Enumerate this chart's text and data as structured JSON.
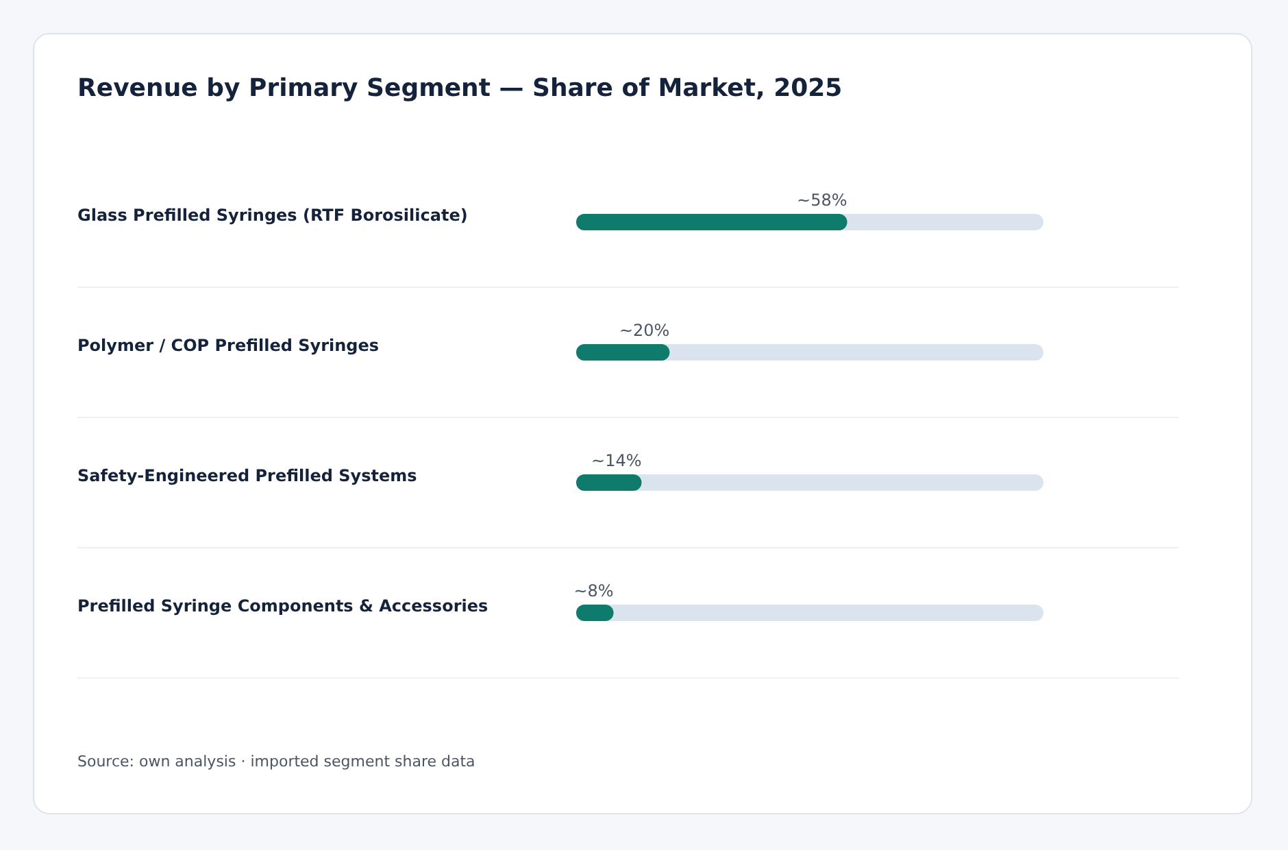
{
  "chart_data": {
    "type": "bar",
    "orientation": "horizontal",
    "title": "Revenue by Primary Segment — Share of Market, 2025",
    "categories": [
      "Glass Prefilled Syringes (RTF Borosilicate)",
      "Polymer / COP Prefilled Syringes",
      "Safety-Engineered Prefilled Systems",
      "Prefilled Syringe Components & Accessories"
    ],
    "series": [
      {
        "color": "#0e7b6d",
        "values": [
          58,
          20,
          14,
          8
        ],
        "value_labels": [
          "~58%",
          "~20%",
          "~14%",
          "~8%"
        ]
      }
    ],
    "xlim": [
      0,
      100
    ],
    "grid": "y",
    "tick_labels": "y",
    "annotations": [
      "Source: own analysis · imported segment share data"
    ]
  }
}
